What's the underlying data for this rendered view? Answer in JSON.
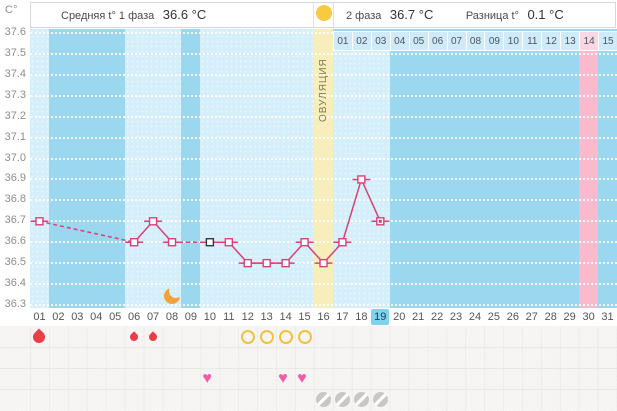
{
  "unit_label": "С°",
  "header": {
    "phase1_label": "Средняя t° 1 фаза",
    "phase1_value": "36.6 °C",
    "phase2_label": "2 фаза",
    "phase2_value": "36.7 °C",
    "diff_label": "Разница t°",
    "diff_value": "0.1 °C"
  },
  "ovulation_column_label": "ОВУЛЯЦИЯ",
  "chart_data": {
    "type": "line",
    "ylabel": "С°",
    "ylim": [
      36.3,
      37.6
    ],
    "y_ticks": [
      "37.6",
      "37.5",
      "37.4",
      "37.3",
      "37.2",
      "37.1",
      "37.0",
      "36.9",
      "36.8",
      "36.7",
      "36.6",
      "36.5",
      "36.4",
      "36.3"
    ],
    "days": [
      "01",
      "02",
      "03",
      "04",
      "05",
      "06",
      "07",
      "08",
      "09",
      "10",
      "11",
      "12",
      "13",
      "14",
      "15",
      "16",
      "17",
      "18",
      "19",
      "20",
      "21",
      "22",
      "23",
      "24",
      "25",
      "26",
      "27",
      "28",
      "29",
      "30",
      "31"
    ],
    "current_day": 19,
    "ovulation_day": 16,
    "expected_period_day": 30,
    "points": [
      {
        "day": 1,
        "temp": 36.7,
        "marker": "normal"
      },
      {
        "day": 6,
        "temp": 36.6,
        "marker": "normal"
      },
      {
        "day": 7,
        "temp": 36.7,
        "marker": "normal"
      },
      {
        "day": 8,
        "temp": 36.6,
        "marker": "normal"
      },
      {
        "day": 10,
        "temp": 36.6,
        "marker": "note"
      },
      {
        "day": 11,
        "temp": 36.6,
        "marker": "normal"
      },
      {
        "day": 12,
        "temp": 36.5,
        "marker": "normal"
      },
      {
        "day": 13,
        "temp": 36.5,
        "marker": "normal"
      },
      {
        "day": 14,
        "temp": 36.5,
        "marker": "normal"
      },
      {
        "day": 15,
        "temp": 36.6,
        "marker": "normal"
      },
      {
        "day": 16,
        "temp": 36.5,
        "marker": "normal"
      },
      {
        "day": 17,
        "temp": 36.6,
        "marker": "normal"
      },
      {
        "day": 18,
        "temp": 36.9,
        "marker": "normal"
      },
      {
        "day": 19,
        "temp": 36.7,
        "marker": "current"
      }
    ],
    "dpo_row": {
      "labels": [
        "01",
        "02",
        "03",
        "04",
        "05",
        "06",
        "07",
        "08",
        "09",
        "10",
        "11",
        "12",
        "13",
        "14",
        "15"
      ],
      "highlight_label": "14"
    }
  },
  "events": {
    "menstruation": [
      {
        "day": 1,
        "size": "large"
      },
      {
        "day": 6,
        "size": "small"
      },
      {
        "day": 7,
        "size": "small"
      }
    ],
    "moon_day": 8,
    "ovulation_test_days": [
      12,
      13,
      14,
      15
    ],
    "intercourse_days": [
      10,
      14,
      15
    ],
    "no_data_days": [
      16,
      17,
      18,
      19
    ]
  },
  "colors": {
    "chart_bg": "#9bd7ee",
    "measured_column": "#d4eefa",
    "ovulation_column": "#f7eebb",
    "period_column": "#f9bacd",
    "dpo_cell": "#cfeaf8",
    "dpo_cell_highlight": "#fbd7e2",
    "line": "#d94077",
    "note_marker": "#333333",
    "current_day_highlight": "#7fd2f0",
    "menstruation": "#ea3d45",
    "ovulation_test": "#f0c23c",
    "intercourse": "#f25ca2",
    "no_data": "#c7c7c7",
    "moon": "#f2a23d",
    "ovulation_marker": "#f8ca40"
  }
}
